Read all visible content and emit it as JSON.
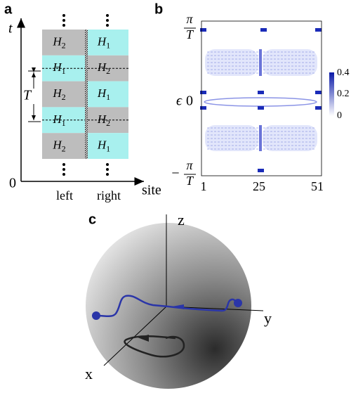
{
  "panel_a": {
    "label": "a",
    "y_axis": "t",
    "origin": "0",
    "x_axis": "site",
    "period": "T",
    "columns": [
      "left",
      "right"
    ],
    "rows": [
      [
        {
          "base": "H",
          "sub": "2"
        },
        {
          "base": "H",
          "sub": "1"
        }
      ],
      [
        {
          "base": "H",
          "sub": "1"
        },
        {
          "base": "H",
          "sub": "2"
        }
      ],
      [
        {
          "base": "H",
          "sub": "2"
        },
        {
          "base": "H",
          "sub": "1"
        }
      ],
      [
        {
          "base": "H",
          "sub": "1"
        },
        {
          "base": "H",
          "sub": "2"
        }
      ],
      [
        {
          "base": "H",
          "sub": "2"
        },
        {
          "base": "H",
          "sub": "1"
        }
      ]
    ]
  },
  "panel_b": {
    "label": "b",
    "y_axis": "ϵ",
    "y_ticks": [
      {
        "num": "π",
        "den": "T"
      },
      {
        "text": "0"
      },
      {
        "sign": "−",
        "num": "π",
        "den": "T"
      }
    ],
    "x_ticks": [
      "1",
      "25",
      "51"
    ],
    "colorbar_ticks": [
      "0.4",
      "0.2",
      "0"
    ]
  },
  "panel_c": {
    "label": "c",
    "axes": {
      "z": "z",
      "y": "y",
      "x": "x"
    }
  }
}
